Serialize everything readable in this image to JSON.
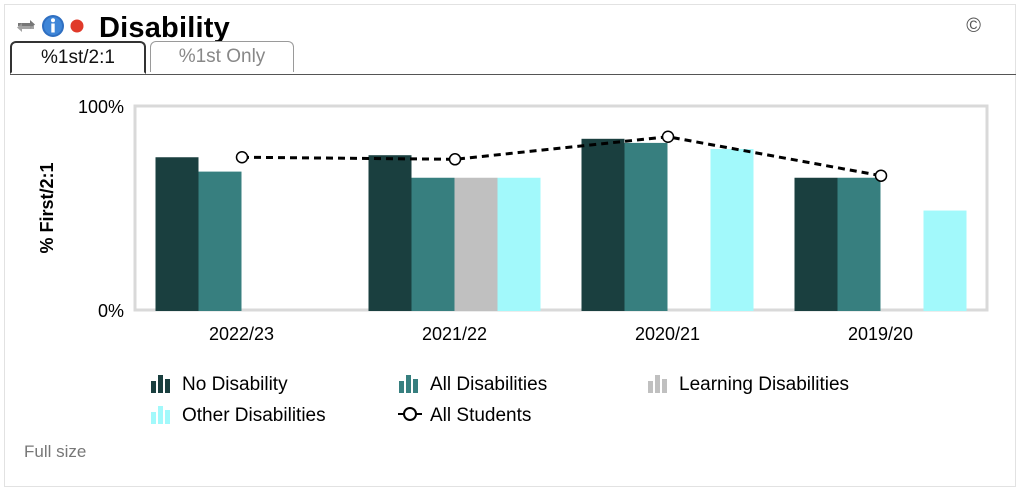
{
  "header": {
    "title": "Disability",
    "copyright": "©",
    "icons": [
      "refresh-icon",
      "info-icon",
      "status-dot-icon"
    ]
  },
  "tabs": [
    {
      "label": "%1st/2:1",
      "active": true
    },
    {
      "label": "%1st Only",
      "active": false
    }
  ],
  "footer": {
    "full_size_label": "Full size"
  },
  "colors": {
    "no_disability": "#1a3f3f",
    "all_disabilities": "#377f7f",
    "learning_disabilities": "#c0c0c0",
    "other_disabilities": "#a2f9fb",
    "all_students": "#000000"
  },
  "chart_data": {
    "type": "bar",
    "ylabel": "% First/2:1",
    "ylim": [
      0,
      100
    ],
    "yticks": [
      "0%",
      "100%"
    ],
    "categories": [
      "2022/23",
      "2021/22",
      "2020/21",
      "2019/20"
    ],
    "series": [
      {
        "name": "No Disability",
        "values": [
          75,
          76,
          84,
          65
        ]
      },
      {
        "name": "All Disabilities",
        "values": [
          68,
          65,
          82,
          65
        ]
      },
      {
        "name": "Learning Disabilities",
        "values": [
          null,
          65,
          null,
          null
        ]
      },
      {
        "name": "Other Disabilities",
        "values": [
          null,
          65,
          79,
          49
        ]
      }
    ],
    "line": {
      "name": "All Students",
      "values": [
        75,
        74,
        85,
        66
      ]
    },
    "legend_position": "bottom"
  }
}
